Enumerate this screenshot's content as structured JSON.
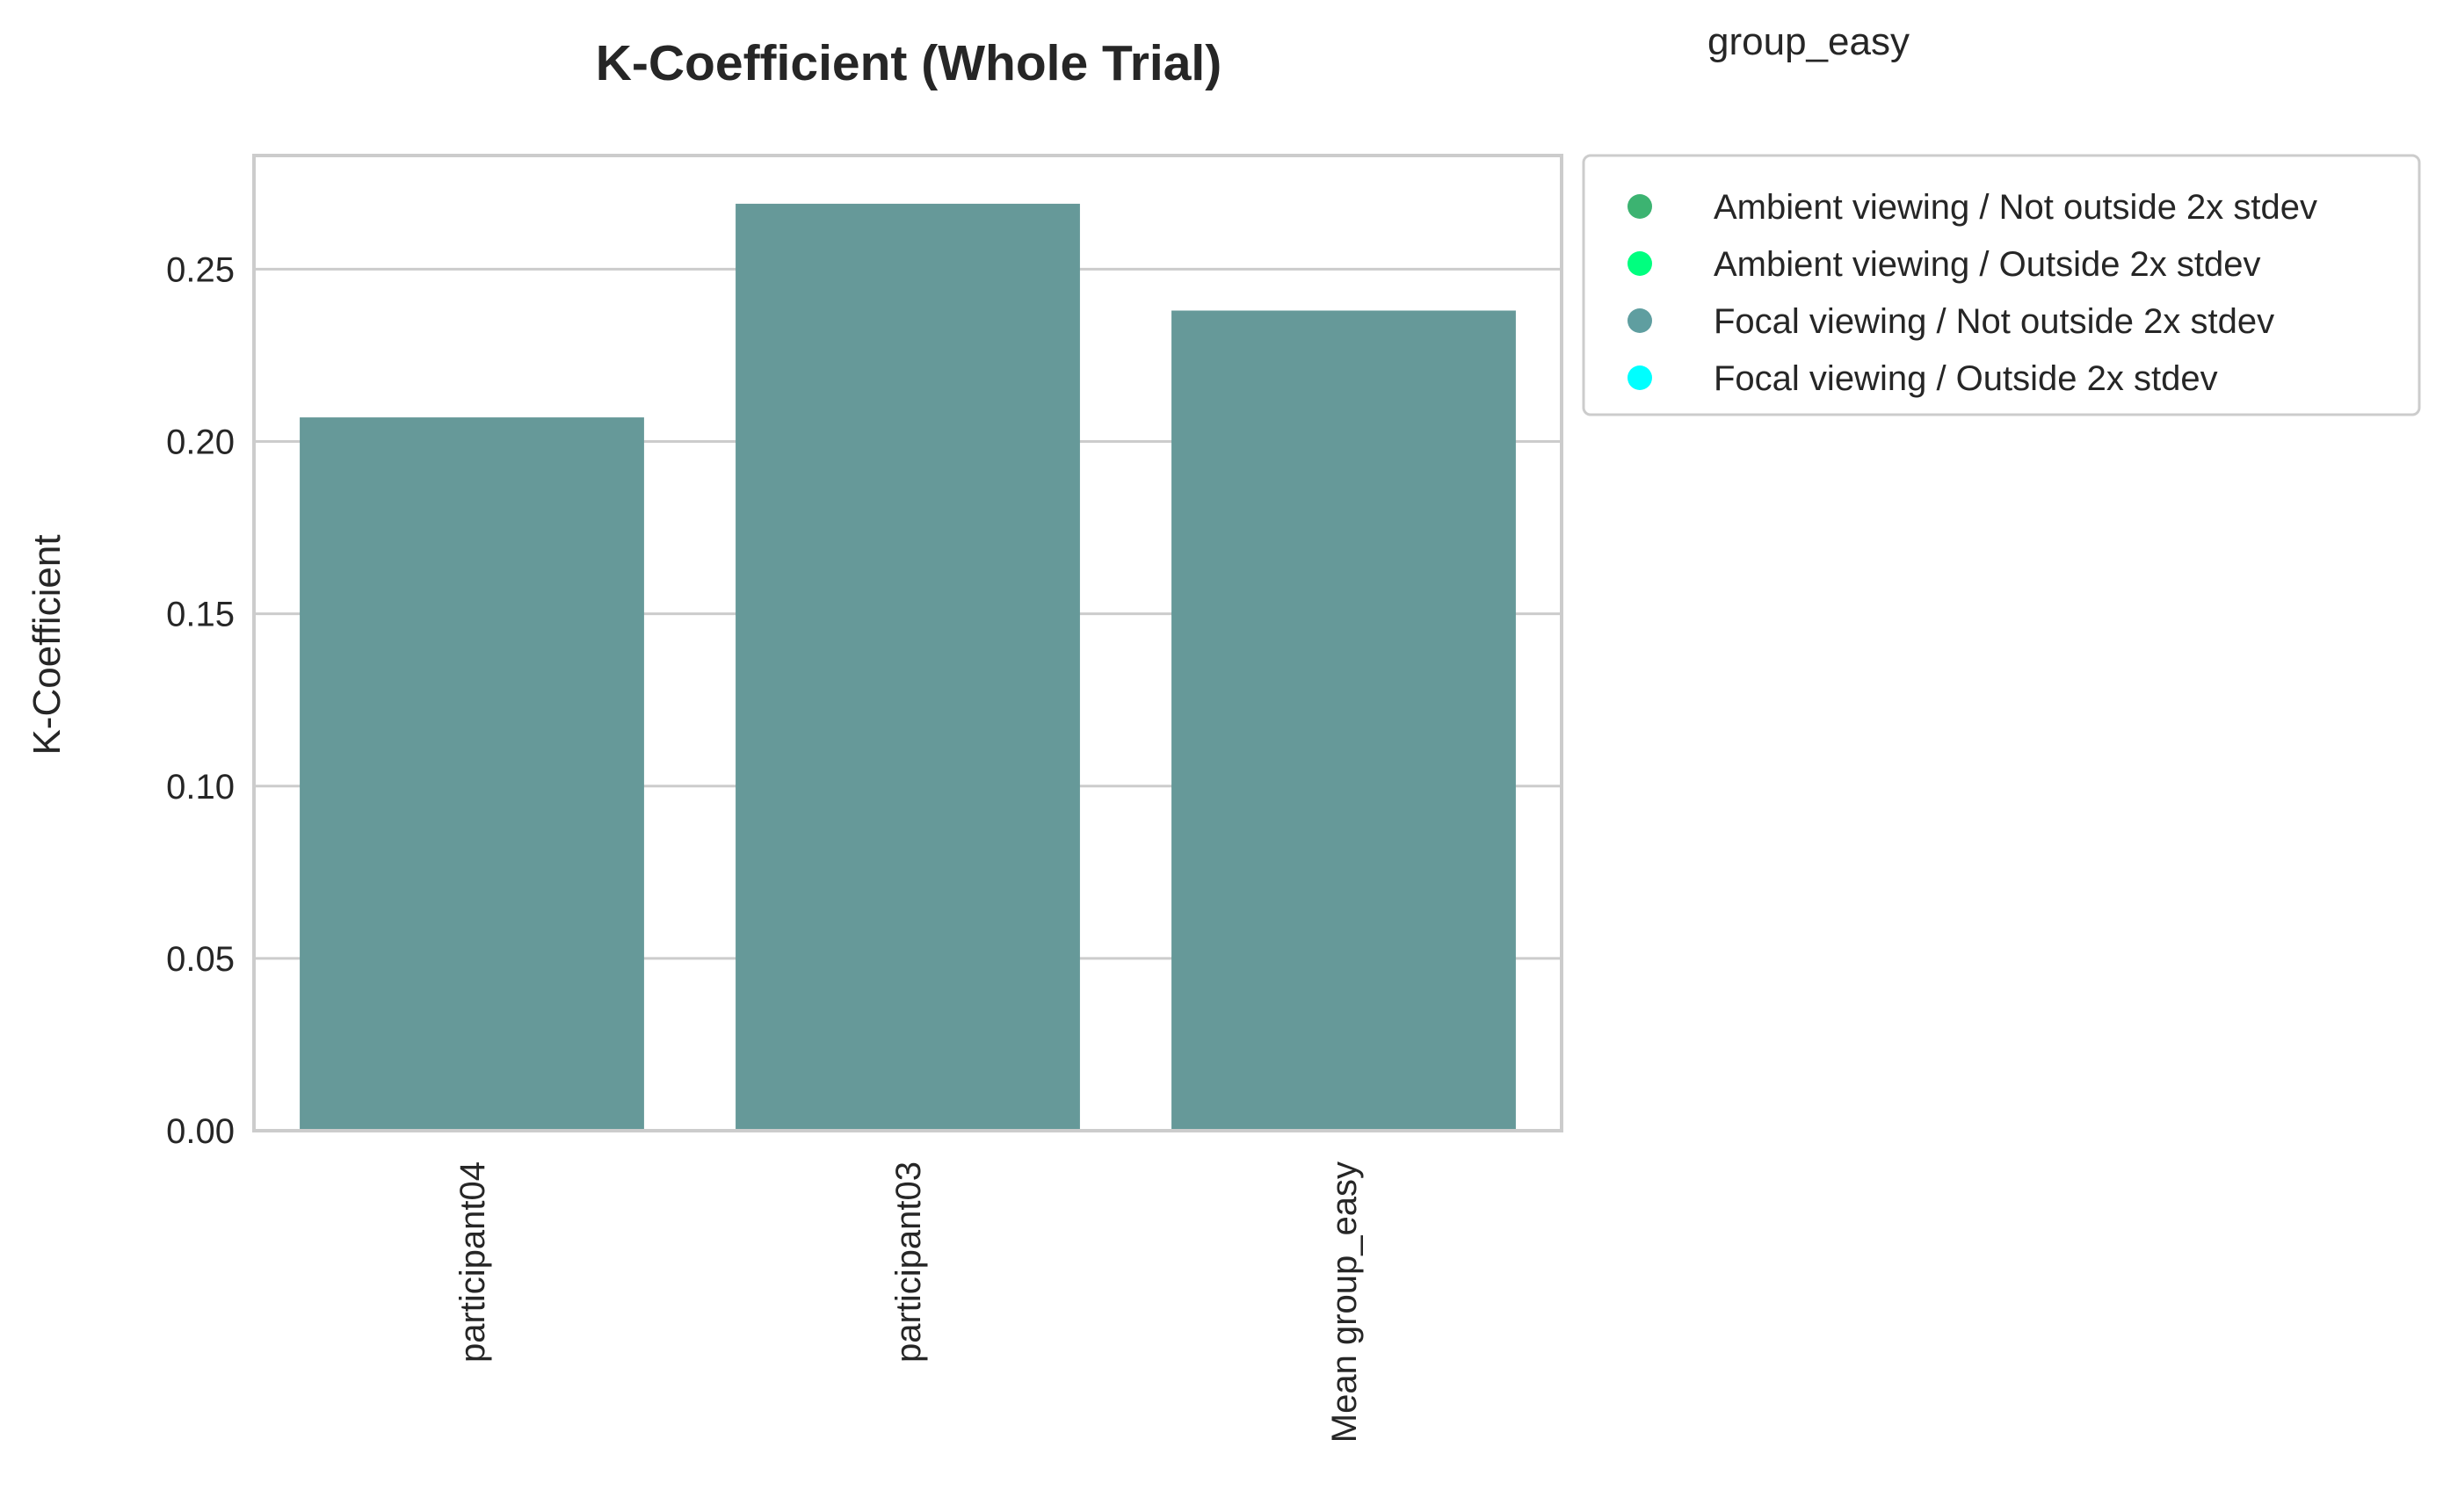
{
  "chart_data": {
    "type": "bar",
    "title": "K-Coefficient (Whole Trial)",
    "group_label": "group_easy",
    "xlabel": "",
    "ylabel": "K-Coefficient",
    "categories": [
      "participant04",
      "participant03",
      "Mean group_easy"
    ],
    "values": [
      0.207,
      0.269,
      0.238
    ],
    "bar_color": "#669999",
    "ylim": [
      0,
      0.283
    ],
    "yticks": [
      "0.00",
      "0.05",
      "0.10",
      "0.15",
      "0.20",
      "0.25"
    ],
    "ytick_values": [
      0,
      0.05,
      0.1,
      0.15,
      0.2,
      0.25
    ],
    "grid": "horizontal",
    "legend_position": "outside-top-right",
    "legend": [
      {
        "label": "Ambient viewing / Not outside 2x stdev",
        "color": "#3cb371"
      },
      {
        "label": "Ambient viewing / Outside 2x stdev",
        "color": "#00ff7f"
      },
      {
        "label": "Focal viewing / Not outside 2x stdev",
        "color": "#5f9ea0"
      },
      {
        "label": "Focal viewing / Outside 2x stdev",
        "color": "#00ffff"
      }
    ]
  }
}
